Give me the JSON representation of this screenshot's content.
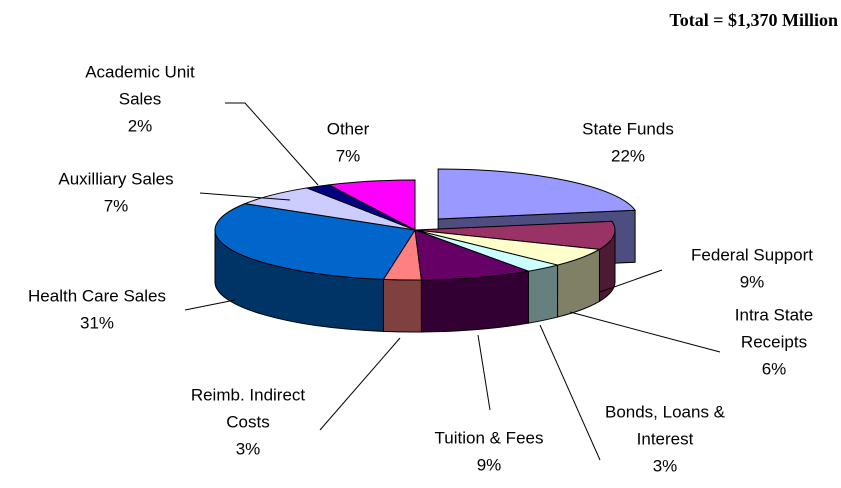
{
  "chart_data": {
    "type": "pie3d",
    "title": "Total = $1,370 Million",
    "series": [
      {
        "name": [
          "State Funds"
        ],
        "value": 22,
        "value_label": "22%",
        "color": "#9999ff",
        "exploded": true
      },
      {
        "name": [
          "Federal Support"
        ],
        "value": 9,
        "value_label": "9%",
        "color": "#993366"
      },
      {
        "name": [
          "Intra State",
          "Receipts"
        ],
        "value": 6,
        "value_label": "6%",
        "color": "#ffffcc"
      },
      {
        "name": [
          "Bonds, Loans &",
          "Interest"
        ],
        "value": 3,
        "value_label": "3%",
        "color": "#ccffff"
      },
      {
        "name": [
          "Tuition & Fees"
        ],
        "value": 9,
        "value_label": "9%",
        "color": "#660066"
      },
      {
        "name": [
          "Reimb. Indirect",
          "Costs"
        ],
        "value": 3,
        "value_label": "3%",
        "color": "#ff8080"
      },
      {
        "name": [
          "Health Care Sales"
        ],
        "value": 31,
        "value_label": "31%",
        "color": "#0066cc"
      },
      {
        "name": [
          "Auxilliary Sales"
        ],
        "value": 7,
        "value_label": "7%",
        "color": "#ccccff"
      },
      {
        "name": [
          "Academic Unit",
          "Sales"
        ],
        "value": 2,
        "value_label": "2%",
        "color": "#000080"
      },
      {
        "name": [
          "Other"
        ],
        "value": 7,
        "value_label": "7%",
        "color": "#ff00ff"
      }
    ]
  }
}
